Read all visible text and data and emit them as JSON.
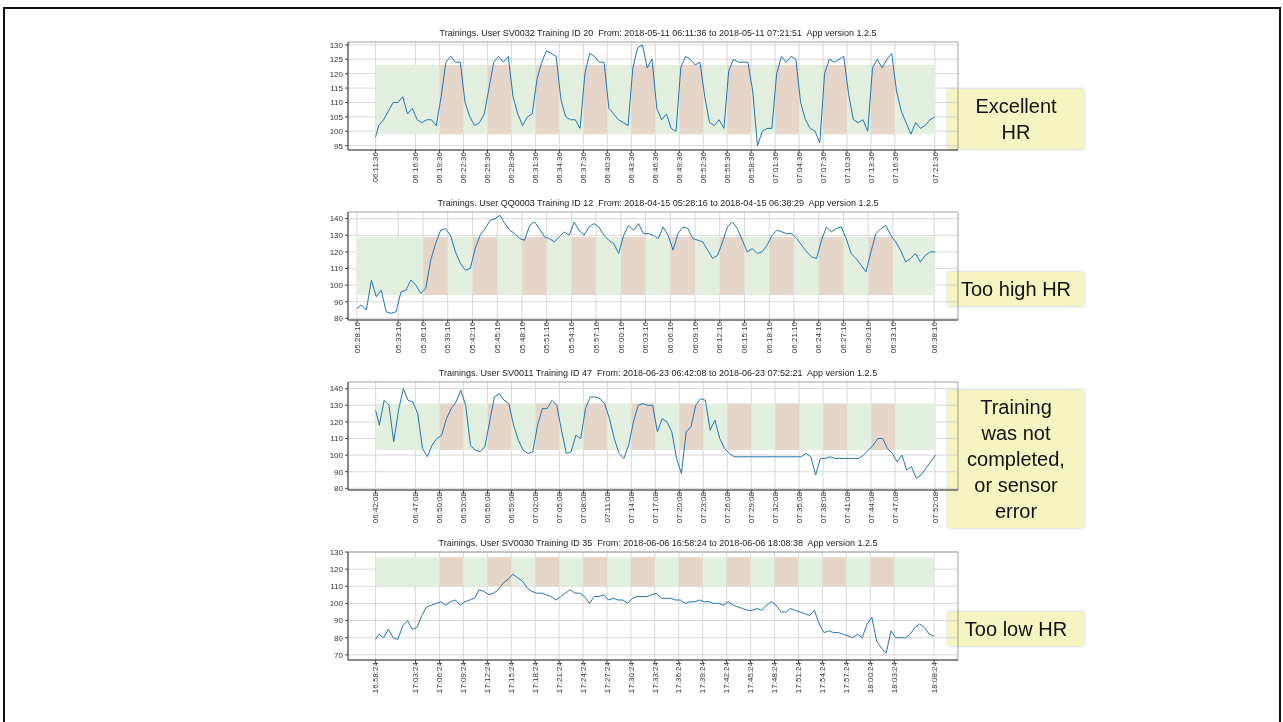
{
  "chart_data": [
    {
      "type": "line",
      "title": "Trainings. User SV0032 Training ID 20  From: 2018-05-11 06:11:36 to 2018-05-11 07:21:51  App version 1.2.5",
      "annotations": [
        "Excellent HR"
      ],
      "grid": true,
      "x": [
        6.1933,
        6.2,
        6.21,
        6.22,
        6.23,
        6.24,
        6.25,
        6.26,
        6.27,
        6.28,
        6.29,
        6.3,
        6.31,
        6.32,
        6.33,
        6.34,
        6.35,
        6.36,
        6.37,
        6.38,
        6.39,
        6.4,
        6.41,
        6.42,
        6.43,
        6.44,
        6.45,
        6.46,
        6.47,
        6.48,
        6.49,
        6.5,
        6.51,
        6.52,
        6.53,
        6.54,
        6.55,
        6.56,
        6.57,
        6.58,
        6.59,
        6.6,
        6.61,
        6.62,
        6.63,
        6.64,
        6.65,
        6.66,
        6.67,
        6.68,
        6.69,
        6.7,
        6.71,
        6.72,
        6.73,
        6.74,
        6.75,
        6.76,
        6.77,
        6.78,
        6.79,
        6.8,
        6.81,
        6.82,
        6.83,
        6.84,
        6.85,
        6.86,
        6.87,
        6.88,
        6.89,
        6.9,
        6.91,
        6.92,
        6.93,
        6.94,
        6.95,
        6.96,
        6.97,
        6.98,
        6.99,
        7.0,
        7.01,
        7.02,
        7.03,
        7.04,
        7.05,
        7.06,
        7.07,
        7.08,
        7.09,
        7.1,
        7.11,
        7.12,
        7.13,
        7.14,
        7.15,
        7.16,
        7.17,
        7.18,
        7.19,
        7.2,
        7.21,
        7.22,
        7.23,
        7.24,
        7.25,
        7.26,
        7.27,
        7.28,
        7.29,
        7.3,
        7.31,
        7.32,
        7.33,
        7.34,
        7.35,
        7.36
      ],
      "series": [
        {
          "color": "#1f77b4",
          "values": [
            98,
            102,
            104,
            107,
            110,
            110,
            112,
            106,
            108,
            104,
            103,
            104,
            104,
            102,
            112,
            124,
            126,
            124,
            124,
            110,
            105,
            102,
            103,
            106,
            115,
            124,
            126,
            124,
            126,
            112,
            106,
            102,
            105,
            106,
            118,
            124,
            128,
            127,
            126,
            111,
            105,
            104,
            104,
            101,
            120,
            127,
            126,
            124,
            124,
            108,
            106,
            104,
            103,
            102,
            122,
            129,
            130,
            122,
            125,
            108,
            104,
            106,
            101,
            100,
            122,
            126,
            125,
            123,
            124,
            112,
            103,
            102,
            104,
            101,
            121,
            125,
            124,
            124,
            124,
            114,
            95,
            100,
            101,
            101,
            120,
            126,
            124,
            126,
            125,
            110,
            104,
            101,
            100,
            96,
            120,
            125,
            124,
            125,
            126,
            113,
            104,
            103,
            104,
            100,
            122,
            125,
            122,
            125,
            127,
            114,
            107,
            103,
            99,
            103,
            101,
            102,
            104,
            105
          ]
        }
      ],
      "xlim": [
        6.1358,
        7.4083
      ],
      "xticks": [
        {
          "value": 6.1933,
          "label": "06:11:36"
        },
        {
          "value": 6.2767,
          "label": "06:16:36"
        },
        {
          "value": 6.3267,
          "label": "06:19:36"
        },
        {
          "value": 6.3767,
          "label": "06:22:36"
        },
        {
          "value": 6.4267,
          "label": "06:25:36"
        },
        {
          "value": 6.4767,
          "label": "06:28:36"
        },
        {
          "value": 6.5267,
          "label": "06:31:36"
        },
        {
          "value": 6.5767,
          "label": "06:34:36"
        },
        {
          "value": 6.6267,
          "label": "06:37:36"
        },
        {
          "value": 6.6767,
          "label": "06:40:36"
        },
        {
          "value": 6.7267,
          "label": "06:43:36"
        },
        {
          "value": 6.7767,
          "label": "06:46:36"
        },
        {
          "value": 6.8267,
          "label": "06:49:36"
        },
        {
          "value": 6.8767,
          "label": "06:52:36"
        },
        {
          "value": 6.9267,
          "label": "06:55:36"
        },
        {
          "value": 6.9767,
          "label": "06:58:36"
        },
        {
          "value": 7.0267,
          "label": "07:01:36"
        },
        {
          "value": 7.0767,
          "label": "07:04:36"
        },
        {
          "value": 7.1267,
          "label": "07:07:36"
        },
        {
          "value": 7.1767,
          "label": "07:10:36"
        },
        {
          "value": 7.2267,
          "label": "07:13:36"
        },
        {
          "value": 7.2767,
          "label": "07:16:36"
        },
        {
          "value": 7.36,
          "label": "07:21:36"
        }
      ],
      "ylim": [
        93.5,
        131
      ],
      "yticks": [
        95,
        100,
        105,
        110,
        115,
        120,
        125,
        130
      ],
      "bands": [
        {
          "axis": "y",
          "from": 99,
          "to": 123,
          "color": "#e3efdf"
        },
        {
          "axis": "x",
          "from": 6.3267,
          "to": 6.3767,
          "color": "#e6d6ca"
        },
        {
          "axis": "x",
          "from": 6.4267,
          "to": 6.4767,
          "color": "#e6d6ca"
        },
        {
          "axis": "x",
          "from": 6.5267,
          "to": 6.5767,
          "color": "#e6d6ca"
        },
        {
          "axis": "x",
          "from": 6.6267,
          "to": 6.6767,
          "color": "#e6d6ca"
        },
        {
          "axis": "x",
          "from": 6.7267,
          "to": 6.7767,
          "color": "#e6d6ca"
        },
        {
          "axis": "x",
          "from": 6.8267,
          "to": 6.8767,
          "color": "#e6d6ca"
        },
        {
          "axis": "x",
          "from": 6.9267,
          "to": 6.9767,
          "color": "#e6d6ca"
        },
        {
          "axis": "x",
          "from": 7.0267,
          "to": 7.0767,
          "color": "#e6d6ca"
        },
        {
          "axis": "x",
          "from": 7.1267,
          "to": 7.1767,
          "color": "#e6d6ca"
        },
        {
          "axis": "x",
          "from": 7.2267,
          "to": 7.2767,
          "color": "#e6d6ca"
        }
      ]
    },
    {
      "type": "line",
      "title": "Trainings. User QQ0003 Training ID 12  From: 2018-04-15 05:28:16 to 2018-04-15 06:38:29  App version 1.2.5",
      "annotations": [
        "Too high HR"
      ],
      "grid": true,
      "x": [
        5.4711,
        5.48,
        5.49,
        5.5,
        5.51,
        5.52,
        5.53,
        5.54,
        5.55,
        5.56,
        5.57,
        5.58,
        5.59,
        5.6,
        5.61,
        5.62,
        5.63,
        5.64,
        5.65,
        5.66,
        5.67,
        5.68,
        5.69,
        5.7,
        5.71,
        5.72,
        5.73,
        5.74,
        5.75,
        5.76,
        5.77,
        5.78,
        5.79,
        5.8,
        5.81,
        5.82,
        5.83,
        5.84,
        5.85,
        5.86,
        5.87,
        5.88,
        5.89,
        5.9,
        5.91,
        5.92,
        5.93,
        5.94,
        5.95,
        5.96,
        5.97,
        5.98,
        5.99,
        6.0,
        6.01,
        6.02,
        6.03,
        6.04,
        6.05,
        6.06,
        6.07,
        6.08,
        6.09,
        6.1,
        6.11,
        6.12,
        6.13,
        6.14,
        6.15,
        6.16,
        6.17,
        6.18,
        6.19,
        6.2,
        6.21,
        6.22,
        6.23,
        6.24,
        6.25,
        6.26,
        6.27,
        6.28,
        6.29,
        6.3,
        6.31,
        6.32,
        6.33,
        6.34,
        6.35,
        6.36,
        6.37,
        6.38,
        6.39,
        6.4,
        6.41,
        6.42,
        6.43,
        6.44,
        6.45,
        6.46,
        6.47,
        6.48,
        6.49,
        6.5,
        6.51,
        6.52,
        6.53,
        6.54,
        6.55,
        6.56,
        6.57,
        6.58,
        6.59,
        6.6,
        6.61,
        6.62,
        6.63,
        6.64
      ],
      "series": [
        {
          "color": "#1f77b4",
          "values": [
            86,
            88,
            85,
            103,
            93,
            97,
            84,
            83,
            84,
            96,
            97,
            103,
            100,
            95,
            98,
            115,
            125,
            133,
            134,
            130,
            120,
            113,
            109,
            110,
            122,
            130,
            134,
            139,
            140,
            142,
            137,
            133,
            131,
            128,
            127,
            136,
            138,
            134,
            129,
            128,
            126,
            129,
            132,
            130,
            138,
            133,
            130,
            135,
            137,
            135,
            130,
            127,
            125,
            119,
            130,
            136,
            133,
            137,
            131,
            131,
            130,
            128,
            135,
            130,
            121,
            131,
            135,
            134,
            128,
            127,
            126,
            121,
            116,
            118,
            126,
            135,
            138,
            134,
            127,
            120,
            122,
            119,
            120,
            124,
            130,
            133,
            132,
            131,
            131,
            128,
            124,
            120,
            117,
            116,
            127,
            135,
            132,
            134,
            135,
            128,
            119,
            116,
            112,
            108,
            120,
            131,
            134,
            136,
            130,
            126,
            121,
            114,
            116,
            119,
            114,
            118,
            120,
            120
          ]
        }
      ],
      "xlim": [
        5.4528,
        6.686
      ],
      "xticks": [
        {
          "value": 5.4711,
          "label": "05:28:16"
        },
        {
          "value": 5.5544,
          "label": "05:33:16"
        },
        {
          "value": 5.6044,
          "label": "05:36:16"
        },
        {
          "value": 5.6544,
          "label": "05:39:16"
        },
        {
          "value": 5.7044,
          "label": "05:42:16"
        },
        {
          "value": 5.7544,
          "label": "05:45:16"
        },
        {
          "value": 5.8044,
          "label": "05:48:16"
        },
        {
          "value": 5.8544,
          "label": "05:51:16"
        },
        {
          "value": 5.9044,
          "label": "05:54:16"
        },
        {
          "value": 5.9544,
          "label": "05:57:16"
        },
        {
          "value": 6.0044,
          "label": "06:00:16"
        },
        {
          "value": 6.0544,
          "label": "06:03:16"
        },
        {
          "value": 6.1044,
          "label": "06:06:16"
        },
        {
          "value": 6.1544,
          "label": "06:09:16"
        },
        {
          "value": 6.2044,
          "label": "06:12:16"
        },
        {
          "value": 6.2544,
          "label": "06:15:16"
        },
        {
          "value": 6.3044,
          "label": "06:18:16"
        },
        {
          "value": 6.3544,
          "label": "06:21:16"
        },
        {
          "value": 6.4044,
          "label": "06:24:16"
        },
        {
          "value": 6.4544,
          "label": "06:27:16"
        },
        {
          "value": 6.5044,
          "label": "06:30:16"
        },
        {
          "value": 6.5544,
          "label": "06:33:16"
        },
        {
          "value": 6.6378,
          "label": "06:38:16"
        }
      ],
      "ylim": [
        79,
        144
      ],
      "yticks": [
        80,
        90,
        100,
        110,
        120,
        130,
        140
      ],
      "bands": [
        {
          "axis": "y",
          "from": 94,
          "to": 129,
          "color": "#e3efdf"
        },
        {
          "axis": "x",
          "from": 5.6044,
          "to": 5.6544,
          "color": "#e6d6ca"
        },
        {
          "axis": "x",
          "from": 5.7044,
          "to": 5.7544,
          "color": "#e6d6ca"
        },
        {
          "axis": "x",
          "from": 5.8044,
          "to": 5.8544,
          "color": "#e6d6ca"
        },
        {
          "axis": "x",
          "from": 5.9044,
          "to": 5.9544,
          "color": "#e6d6ca"
        },
        {
          "axis": "x",
          "from": 6.0044,
          "to": 6.0544,
          "color": "#e6d6ca"
        },
        {
          "axis": "x",
          "from": 6.1044,
          "to": 6.1544,
          "color": "#e6d6ca"
        },
        {
          "axis": "x",
          "from": 6.2044,
          "to": 6.2544,
          "color": "#e6d6ca"
        },
        {
          "axis": "x",
          "from": 6.3044,
          "to": 6.3544,
          "color": "#e6d6ca"
        },
        {
          "axis": "x",
          "from": 6.4044,
          "to": 6.4544,
          "color": "#e6d6ca"
        },
        {
          "axis": "x",
          "from": 6.5044,
          "to": 6.5544,
          "color": "#e6d6ca"
        }
      ]
    },
    {
      "type": "line",
      "title": "Trainings. User SV0011 Training ID 47  From: 2018-06-23 06:42:08 to 2018-06-23 07:52:21  App version 1.2.5",
      "annotations": [
        "Training was not completed, or sensor error"
      ],
      "grid": true,
      "x": [
        6.7022,
        6.71,
        6.72,
        6.73,
        6.74,
        6.75,
        6.76,
        6.77,
        6.78,
        6.79,
        6.8,
        6.81,
        6.82,
        6.83,
        6.84,
        6.85,
        6.86,
        6.87,
        6.88,
        6.89,
        6.9,
        6.91,
        6.92,
        6.93,
        6.94,
        6.95,
        6.96,
        6.97,
        6.98,
        6.99,
        7.0,
        7.01,
        7.02,
        7.03,
        7.04,
        7.05,
        7.06,
        7.07,
        7.08,
        7.09,
        7.1,
        7.11,
        7.12,
        7.13,
        7.14,
        7.15,
        7.16,
        7.17,
        7.18,
        7.19,
        7.2,
        7.21,
        7.22,
        7.23,
        7.24,
        7.25,
        7.26,
        7.27,
        7.28,
        7.29,
        7.3,
        7.31,
        7.32,
        7.33,
        7.34,
        7.35,
        7.36,
        7.37,
        7.38,
        7.39,
        7.4,
        7.41,
        7.42,
        7.43,
        7.44,
        7.45,
        7.46,
        7.47,
        7.48,
        7.49,
        7.5,
        7.51,
        7.52,
        7.53,
        7.54,
        7.55,
        7.56,
        7.57,
        7.58,
        7.59,
        7.6,
        7.61,
        7.62,
        7.63,
        7.64,
        7.65,
        7.66,
        7.67,
        7.68,
        7.69,
        7.7,
        7.71,
        7.72,
        7.73,
        7.74,
        7.75,
        7.76,
        7.77,
        7.78,
        7.79,
        7.8,
        7.81,
        7.82,
        7.83,
        7.84,
        7.85,
        7.86,
        7.87
      ],
      "series": [
        {
          "color": "#1f77b4",
          "values": [
            127,
            118,
            133,
            130,
            108,
            127,
            140,
            133,
            132,
            125,
            104,
            99,
            106,
            110,
            112,
            122,
            128,
            132,
            139,
            130,
            106,
            103,
            102,
            105,
            120,
            135,
            137,
            133,
            131,
            118,
            109,
            103,
            101,
            102,
            118,
            128,
            128,
            133,
            130,
            115,
            101,
            102,
            112,
            110,
            128,
            135,
            135,
            134,
            131,
            122,
            110,
            101,
            98,
            106,
            120,
            130,
            131,
            130,
            130,
            114,
            122,
            120,
            114,
            98,
            89,
            114,
            117,
            130,
            134,
            133,
            115,
            121,
            110,
            104,
            101,
            99,
            99,
            99,
            99,
            99,
            99,
            99,
            99,
            99,
            99,
            99,
            99,
            99,
            99,
            99,
            101,
            99,
            88,
            98,
            98,
            99,
            98,
            98,
            98,
            98,
            98,
            98,
            100,
            103,
            106,
            110,
            110,
            104,
            101,
            96,
            100,
            91,
            93,
            86,
            88,
            92,
            96,
            100
          ]
        }
      ],
      "xlim": [
        6.6446,
        7.917
      ],
      "xticks": [
        {
          "value": 6.7022,
          "label": "06:42:08"
        },
        {
          "value": 6.7856,
          "label": "06:47:08"
        },
        {
          "value": 6.8356,
          "label": "06:50:08"
        },
        {
          "value": 6.8856,
          "label": "06:53:08"
        },
        {
          "value": 6.9356,
          "label": "06:56:08"
        },
        {
          "value": 6.9856,
          "label": "06:59:08"
        },
        {
          "value": 7.0356,
          "label": "07:02:08"
        },
        {
          "value": 7.0856,
          "label": "07:05:08"
        },
        {
          "value": 7.1356,
          "label": "07:08:08"
        },
        {
          "value": 7.1856,
          "label": "07:11:08"
        },
        {
          "value": 7.2356,
          "label": "07:14:08"
        },
        {
          "value": 7.2856,
          "label": "07:17:08"
        },
        {
          "value": 7.3356,
          "label": "07:20:08"
        },
        {
          "value": 7.3856,
          "label": "07:23:08"
        },
        {
          "value": 7.4356,
          "label": "07:26:08"
        },
        {
          "value": 7.4856,
          "label": "07:29:08"
        },
        {
          "value": 7.5356,
          "label": "07:32:08"
        },
        {
          "value": 7.5856,
          "label": "07:35:08"
        },
        {
          "value": 7.6356,
          "label": "07:38:08"
        },
        {
          "value": 7.6856,
          "label": "07:41:08"
        },
        {
          "value": 7.7356,
          "label": "07:44:08"
        },
        {
          "value": 7.7856,
          "label": "07:47:08"
        },
        {
          "value": 7.8689,
          "label": "07:52:08"
        }
      ],
      "ylim": [
        79,
        144
      ],
      "yticks": [
        80,
        90,
        100,
        110,
        120,
        130,
        140
      ],
      "bands": [
        {
          "axis": "y",
          "from": 103,
          "to": 131,
          "color": "#e3efdf"
        },
        {
          "axis": "x",
          "from": 6.8356,
          "to": 6.8856,
          "color": "#e6d6ca"
        },
        {
          "axis": "x",
          "from": 6.9356,
          "to": 6.9856,
          "color": "#e6d6ca"
        },
        {
          "axis": "x",
          "from": 7.0356,
          "to": 7.0856,
          "color": "#e6d6ca"
        },
        {
          "axis": "x",
          "from": 7.1356,
          "to": 7.1856,
          "color": "#e6d6ca"
        },
        {
          "axis": "x",
          "from": 7.2356,
          "to": 7.2856,
          "color": "#e6d6ca"
        },
        {
          "axis": "x",
          "from": 7.3356,
          "to": 7.3856,
          "color": "#e6d6ca"
        },
        {
          "axis": "x",
          "from": 7.4356,
          "to": 7.4856,
          "color": "#e6d6ca"
        },
        {
          "axis": "x",
          "from": 7.5356,
          "to": 7.5856,
          "color": "#e6d6ca"
        },
        {
          "axis": "x",
          "from": 7.6356,
          "to": 7.6856,
          "color": "#e6d6ca"
        },
        {
          "axis": "x",
          "from": 7.7356,
          "to": 7.7856,
          "color": "#e6d6ca"
        }
      ]
    },
    {
      "type": "line",
      "title": "Trainings. User SV0030 Training ID 35  From: 2018-06-06 16:58:24 to 2018-06-06 18:08:38  App version 1.2.5",
      "annotations": [
        "Too low HR"
      ],
      "grid": true,
      "x": [
        16.9733,
        16.98,
        16.99,
        17.0,
        17.01,
        17.02,
        17.03,
        17.04,
        17.05,
        17.06,
        17.07,
        17.08,
        17.09,
        17.1,
        17.11,
        17.12,
        17.13,
        17.14,
        17.15,
        17.16,
        17.17,
        17.18,
        17.19,
        17.2,
        17.21,
        17.22,
        17.23,
        17.24,
        17.25,
        17.26,
        17.27,
        17.28,
        17.29,
        17.3,
        17.31,
        17.32,
        17.33,
        17.34,
        17.35,
        17.36,
        17.37,
        17.38,
        17.39,
        17.4,
        17.41,
        17.42,
        17.43,
        17.44,
        17.45,
        17.46,
        17.47,
        17.48,
        17.49,
        17.5,
        17.51,
        17.52,
        17.53,
        17.54,
        17.55,
        17.56,
        17.57,
        17.58,
        17.59,
        17.6,
        17.61,
        17.62,
        17.63,
        17.64,
        17.65,
        17.66,
        17.67,
        17.68,
        17.69,
        17.7,
        17.71,
        17.72,
        17.73,
        17.74,
        17.75,
        17.76,
        17.77,
        17.78,
        17.79,
        17.8,
        17.81,
        17.82,
        17.83,
        17.84,
        17.85,
        17.86,
        17.87,
        17.88,
        17.89,
        17.9,
        17.91,
        17.92,
        17.93,
        17.94,
        17.95,
        17.96,
        17.97,
        17.98,
        17.99,
        18.0,
        18.01,
        18.02,
        18.03,
        18.04,
        18.05,
        18.06,
        18.07,
        18.08,
        18.09,
        18.1,
        18.11,
        18.12,
        18.13,
        18.14
      ],
      "series": [
        {
          "color": "#1f77b4",
          "values": [
            79,
            82,
            80,
            85,
            80,
            79,
            87,
            90,
            85,
            86,
            93,
            98,
            99,
            100,
            101,
            99,
            101,
            102,
            99,
            101,
            102,
            103,
            108,
            107,
            105,
            106,
            108,
            112,
            114,
            117,
            115,
            113,
            109,
            107,
            106,
            106,
            105,
            104,
            102,
            104,
            106,
            108,
            106,
            106,
            104,
            100,
            104,
            104,
            105,
            102,
            103,
            102,
            102,
            100,
            103,
            104,
            104,
            104,
            105,
            106,
            103,
            103,
            103,
            102,
            102,
            100,
            101,
            101,
            102,
            101,
            101,
            100,
            100,
            99,
            101,
            99,
            98,
            97,
            96,
            96,
            97,
            96,
            99,
            101,
            99,
            95,
            95,
            97,
            96,
            95,
            94,
            93,
            96,
            88,
            83,
            84,
            83,
            83,
            82,
            81,
            80,
            82,
            80,
            88,
            92,
            78,
            74,
            71,
            84,
            80,
            80,
            80,
            82,
            86,
            88,
            86,
            82,
            81
          ]
        }
      ],
      "xlim": [
        16.9157,
        18.19
      ],
      "xticks": [
        {
          "value": 16.9733,
          "label": "16:58:24"
        },
        {
          "value": 17.0567,
          "label": "17:03:24"
        },
        {
          "value": 17.1067,
          "label": "17:06:24"
        },
        {
          "value": 17.1567,
          "label": "17:09:24"
        },
        {
          "value": 17.2067,
          "label": "17:12:24"
        },
        {
          "value": 17.2567,
          "label": "17:15:24"
        },
        {
          "value": 17.3067,
          "label": "17:18:24"
        },
        {
          "value": 17.3567,
          "label": "17:21:24"
        },
        {
          "value": 17.4067,
          "label": "17:24:24"
        },
        {
          "value": 17.4567,
          "label": "17:27:24"
        },
        {
          "value": 17.5067,
          "label": "17:30:24"
        },
        {
          "value": 17.5567,
          "label": "17:33:24"
        },
        {
          "value": 17.6067,
          "label": "17:36:24"
        },
        {
          "value": 17.6567,
          "label": "17:39:24"
        },
        {
          "value": 17.7067,
          "label": "17:42:24"
        },
        {
          "value": 17.7567,
          "label": "17:45:24"
        },
        {
          "value": 17.8067,
          "label": "17:48:24"
        },
        {
          "value": 17.8567,
          "label": "17:51:24"
        },
        {
          "value": 17.9067,
          "label": "17:54:24"
        },
        {
          "value": 17.9567,
          "label": "17:57:24"
        },
        {
          "value": 18.0067,
          "label": "18:00:24"
        },
        {
          "value": 18.0567,
          "label": "18:03:24"
        },
        {
          "value": 18.14,
          "label": "18:08:24"
        }
      ],
      "ylim": [
        67,
        130
      ],
      "yticks": [
        70,
        80,
        90,
        100,
        110,
        120,
        130
      ],
      "bands": [
        {
          "axis": "y",
          "from": 110,
          "to": 127,
          "color": "#e3efdf"
        },
        {
          "axis": "x",
          "from": 17.1067,
          "to": 17.1567,
          "color": "#e6d6ca"
        },
        {
          "axis": "x",
          "from": 17.2067,
          "to": 17.2567,
          "color": "#e6d6ca"
        },
        {
          "axis": "x",
          "from": 17.3067,
          "to": 17.3567,
          "color": "#e6d6ca"
        },
        {
          "axis": "x",
          "from": 17.4067,
          "to": 17.4567,
          "color": "#e6d6ca"
        },
        {
          "axis": "x",
          "from": 17.5067,
          "to": 17.5567,
          "color": "#e6d6ca"
        },
        {
          "axis": "x",
          "from": 17.6067,
          "to": 17.6567,
          "color": "#e6d6ca"
        },
        {
          "axis": "x",
          "from": 17.7067,
          "to": 17.7567,
          "color": "#e6d6ca"
        },
        {
          "axis": "x",
          "from": 17.8067,
          "to": 17.8567,
          "color": "#e6d6ca"
        },
        {
          "axis": "x",
          "from": 17.9067,
          "to": 17.9567,
          "color": "#e6d6ca"
        },
        {
          "axis": "x",
          "from": 18.0067,
          "to": 18.0567,
          "color": "#e6d6ca"
        }
      ]
    }
  ]
}
